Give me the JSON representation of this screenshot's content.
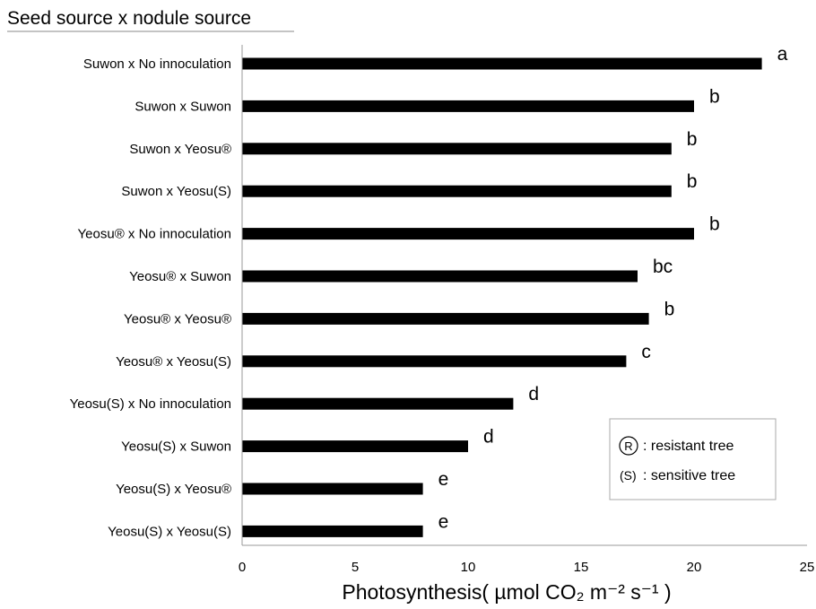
{
  "chart_data": {
    "type": "bar",
    "orientation": "horizontal",
    "title": "Seed source x nodule source",
    "xlabel": "Photosynthesis( µmol CO₂ m⁻² s⁻¹ )",
    "xlim": [
      0,
      25
    ],
    "xticks": [
      0,
      5,
      10,
      15,
      20,
      25
    ],
    "grid": false,
    "categories": [
      "Suwon x No innoculation",
      "Suwon x Suwon",
      "Suwon x Yeosu®",
      "Suwon x Yeosu(S)",
      "Yeosu®  x No innoculation",
      "Yeosu®  x Suwon",
      "Yeosu® x Yeosu®",
      "Yeosu® x Yeosu(S)",
      "Yeosu(S)  x No innoculation",
      "Yeosu(S) x Suwon",
      "Yeosu(S) x Yeosu®",
      "Yeosu(S) x Yeosu(S)"
    ],
    "values": [
      23,
      20,
      19,
      19,
      20,
      17.5,
      18,
      17,
      12,
      10,
      8,
      8
    ],
    "significance_letters": [
      "a",
      "b",
      "b",
      "b",
      "b",
      "bc",
      "b",
      "c",
      "d",
      "d",
      "e",
      "e"
    ],
    "bar_color": "#000000",
    "legend": {
      "placement": "bottom-right",
      "entries": [
        {
          "symbol": "R",
          "text": ": resistant tree"
        },
        {
          "symbol": "(S)",
          "text": ": sensitive tree"
        }
      ]
    }
  }
}
